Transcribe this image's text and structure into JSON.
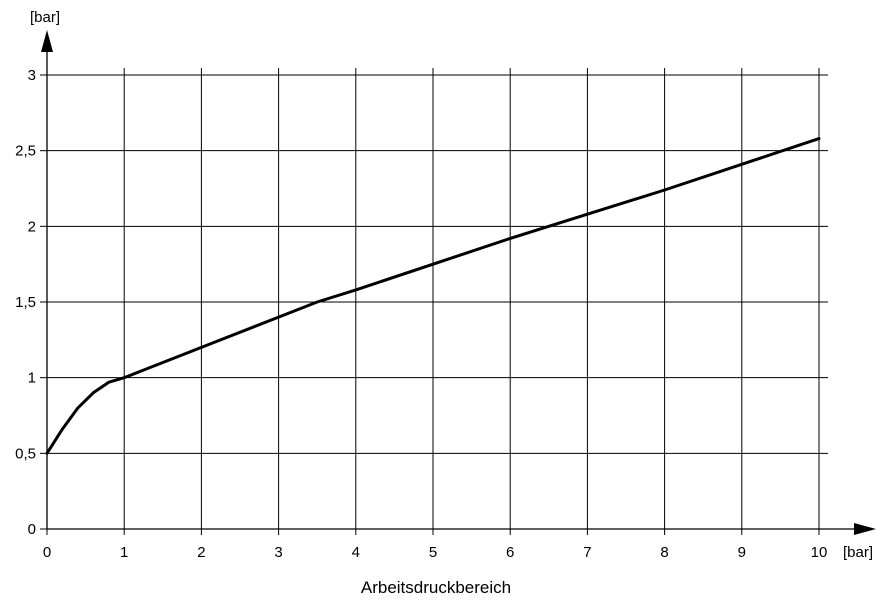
{
  "chart_data": {
    "type": "line",
    "title": "",
    "xlabel": "Arbeitsdruckbereich",
    "ylabel": "",
    "x_unit": "[bar]",
    "y_unit": "[bar]",
    "xlim": [
      0,
      10
    ],
    "ylim": [
      0,
      3
    ],
    "x_ticks": [
      0,
      1,
      2,
      3,
      4,
      5,
      6,
      7,
      8,
      9,
      10
    ],
    "x_tick_labels": [
      "0",
      "1",
      "2",
      "3",
      "4",
      "5",
      "6",
      "7",
      "8",
      "9",
      "10"
    ],
    "y_ticks": [
      0,
      0.5,
      1,
      1.5,
      2,
      2.5,
      3
    ],
    "y_tick_labels": [
      "0",
      "0,5",
      "1",
      "1,5",
      "2",
      "2,5",
      "3"
    ],
    "grid": true,
    "legend": "none",
    "line_color": "#000000",
    "series": [
      {
        "x": [
          0,
          0.2,
          0.4,
          0.6,
          0.8,
          1.0,
          1.2,
          2,
          3,
          3.5,
          4,
          5,
          6,
          7,
          8,
          9,
          10
        ],
        "y": [
          0.5,
          0.66,
          0.8,
          0.9,
          0.97,
          1.0,
          1.04,
          1.2,
          1.4,
          1.5,
          1.58,
          1.75,
          1.92,
          2.08,
          2.24,
          2.41,
          2.58
        ]
      }
    ]
  }
}
